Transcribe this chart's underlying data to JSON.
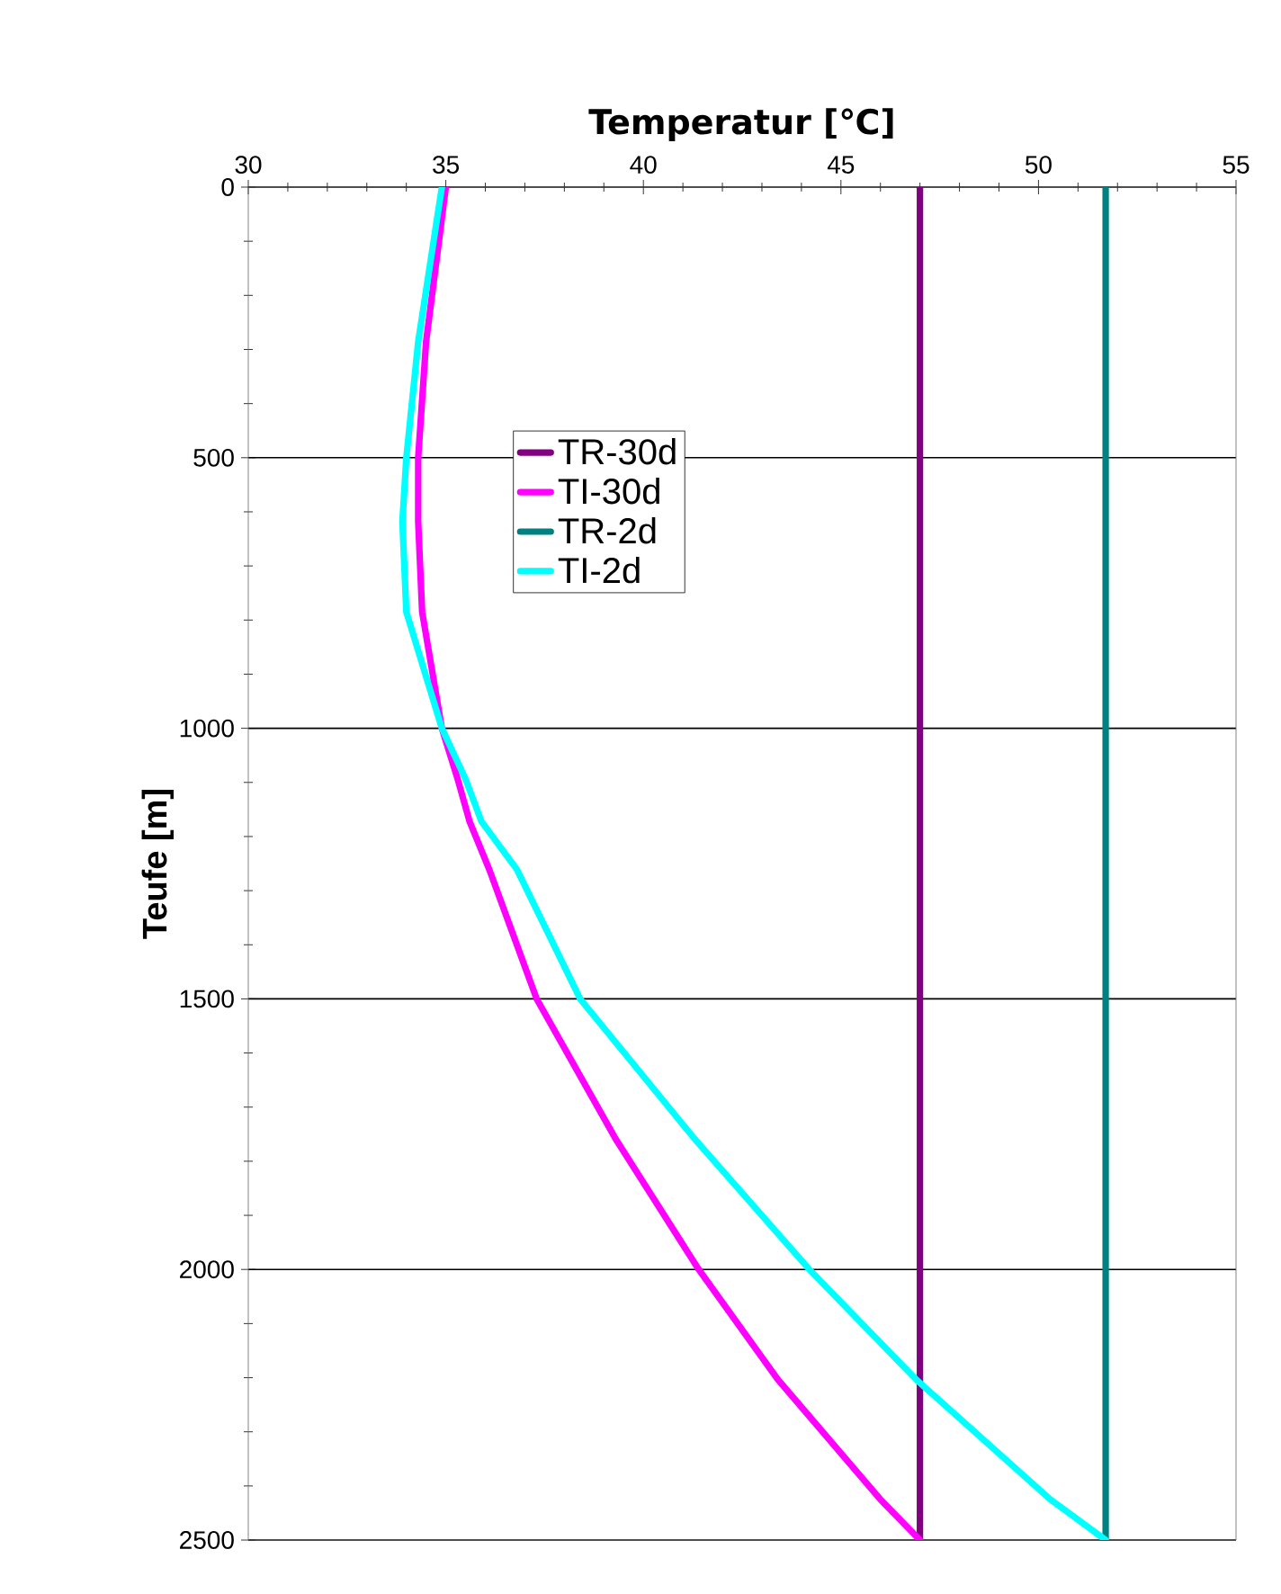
{
  "chart_data": {
    "type": "line",
    "xlabel": "Temperatur [℃]",
    "ylabel": "Teufe [m]",
    "xlim": [
      30,
      55
    ],
    "xticks": [
      30,
      35,
      40,
      45,
      50,
      55
    ],
    "ylim": [
      2500,
      0
    ],
    "yticks": [
      0,
      500,
      1000,
      1500,
      2000,
      2500
    ],
    "grid": "y",
    "legend": "top left",
    "marker": "none",
    "line_style": "solid",
    "series": [
      {
        "name": "TR-30d",
        "color": "#800080",
        "x": [
          47.0,
          47.0
        ],
        "values": [
          0,
          2500
        ]
      },
      {
        "name": "TI-30d",
        "color": "#ff00ff",
        "x": [
          35.0,
          34.5,
          34.3,
          34.3,
          34.4,
          34.9,
          35.3,
          35.6,
          36.1,
          37.3,
          39.3,
          41.4,
          43.4,
          46.0,
          47.0
        ],
        "values": [
          0,
          286,
          500,
          618,
          785,
          1000,
          1094,
          1172,
          1261,
          1500,
          1759,
          2000,
          2203,
          2425,
          2500
        ]
      },
      {
        "name": "TR-2d",
        "color": "#008080",
        "x": [
          51.7,
          51.7
        ],
        "values": [
          0,
          2500
        ]
      },
      {
        "name": "TI-2d",
        "color": "#00ffff",
        "x": [
          34.9,
          34.3,
          34.0,
          33.9,
          34.0,
          34.9,
          35.5,
          35.9,
          36.8,
          38.4,
          41.3,
          44.2,
          46.9,
          50.3,
          51.7
        ],
        "values": [
          0,
          286,
          500,
          618,
          785,
          1000,
          1094,
          1172,
          1261,
          1500,
          1759,
          2000,
          2203,
          2425,
          2500
        ]
      }
    ]
  }
}
